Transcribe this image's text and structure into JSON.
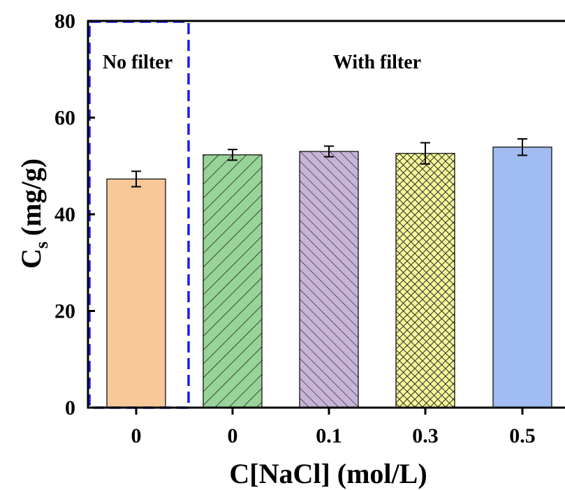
{
  "chart_data": {
    "type": "bar",
    "categories": [
      "0",
      "0",
      "0.1",
      "0.3",
      "0.5"
    ],
    "values": [
      47.3,
      52.3,
      53.0,
      52.6,
      53.9
    ],
    "errors": [
      1.6,
      1.1,
      1.1,
      2.2,
      1.7
    ],
    "colors": [
      "#f8c898",
      "#98d498",
      "#c8b4d8",
      "#f8f898",
      "#a0bcf0"
    ],
    "patterns": [
      "none",
      "diagonal-up",
      "diagonal-down",
      "crosshatch",
      "none"
    ],
    "xlabel": "C[NaCl] (mol/L)",
    "ylabel_main": "C",
    "ylabel_sub": "s",
    "ylabel_unit": "(mg/g)",
    "ylim": [
      0,
      80
    ],
    "yticks": [
      0,
      20,
      40,
      60,
      80
    ],
    "annotations": {
      "no_filter": "No filter",
      "with_filter": "With filter"
    },
    "highlight_box_color": "#1a1aff",
    "grid": false
  }
}
